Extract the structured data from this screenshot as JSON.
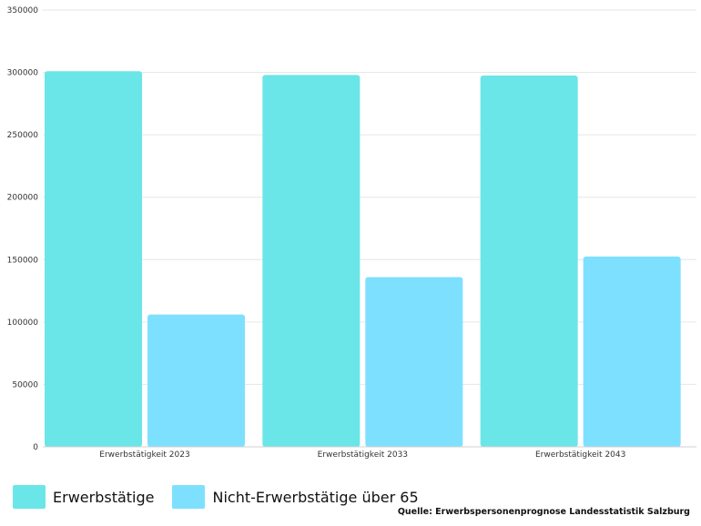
{
  "chart_data": {
    "type": "bar",
    "categories": [
      "Erwerbstätigkeit 2023",
      "Erwerbstätigkeit 2033",
      "Erwerbstätigkeit 2043"
    ],
    "series": [
      {
        "name": "Erwerbstätige",
        "values": [
          301000,
          298000,
          297500
        ],
        "color": "#6ae6e8"
      },
      {
        "name": "Nicht-Erwerbstätige über 65",
        "values": [
          106000,
          136000,
          152500
        ],
        "color": "#7ee0ff"
      }
    ],
    "yticks": [
      0,
      50000,
      100000,
      150000,
      200000,
      250000,
      300000,
      350000
    ],
    "ytick_labels": [
      "0",
      "50000",
      "100000",
      "150000",
      "200000",
      "250000",
      "300000",
      "350000"
    ],
    "ylim": [
      0,
      350000
    ],
    "grid": true,
    "legend_position": "bottom-left"
  },
  "source_text": "Quelle: Erwerbspersonenprognose Landesstatistik Salzburg"
}
